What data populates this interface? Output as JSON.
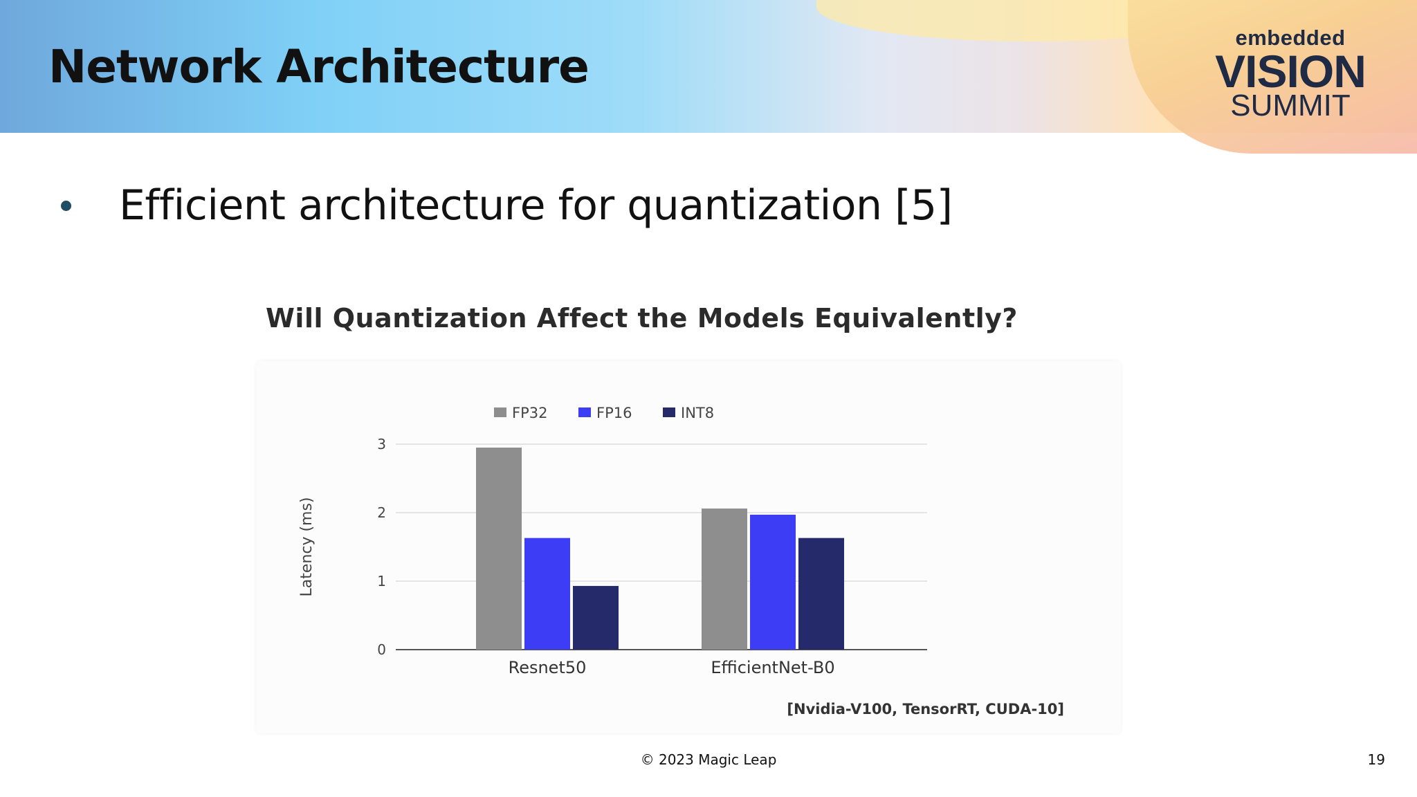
{
  "slide": {
    "title": "Network Architecture",
    "bullet": "Efficient architecture for quantization [5]",
    "footer": "© 2023 Magic Leap",
    "page_number": "19"
  },
  "logo": {
    "line1": "embedded",
    "line2": "VISION",
    "line3": "SUMMIT"
  },
  "chart_data": {
    "type": "bar",
    "title": "Will Quantization Affect the Models Equivalently?",
    "categories": [
      "Resnet50",
      "EfficientNet-B0"
    ],
    "series": [
      {
        "name": "FP32",
        "values": [
          2.95,
          2.06
        ],
        "color": "#8e8e8e"
      },
      {
        "name": "FP16",
        "values": [
          1.63,
          1.97
        ],
        "color": "#3d3df5"
      },
      {
        "name": "INT8",
        "values": [
          0.93,
          1.63
        ],
        "color": "#252a6b"
      }
    ],
    "xlabel": "",
    "ylabel": "Latency (ms)",
    "ylim": [
      0,
      3
    ],
    "yticks": [
      0,
      1,
      2,
      3
    ],
    "grid": true,
    "legend": "top",
    "annotation": "[Nvidia-V100, TensorRT, CUDA-10]"
  }
}
